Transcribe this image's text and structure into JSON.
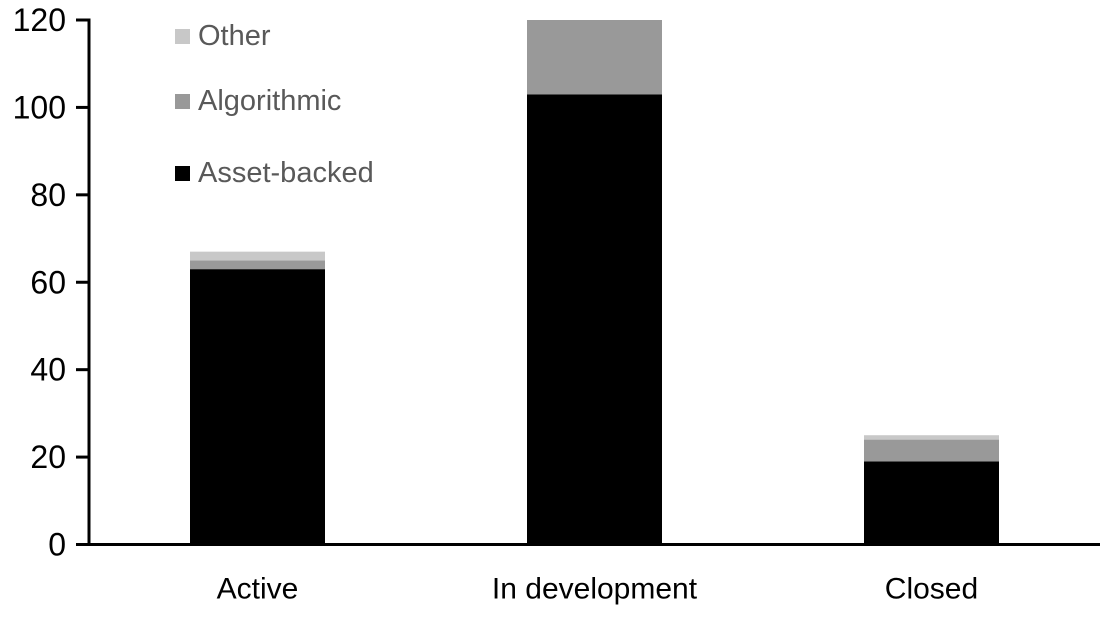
{
  "chart_data": {
    "type": "bar",
    "stacked": true,
    "title": "",
    "xlabel": "",
    "ylabel": "",
    "categories": [
      "Active",
      "In development",
      "Closed"
    ],
    "series": [
      {
        "name": "Asset-backed",
        "color": "#000000",
        "values": [
          63,
          103,
          19
        ]
      },
      {
        "name": "Algorithmic",
        "color": "#999999",
        "values": [
          2,
          17,
          5
        ]
      },
      {
        "name": "Other",
        "color": "#c8c8c8",
        "values": [
          2,
          0,
          1
        ]
      }
    ],
    "stack_totals": [
      67,
      120,
      25
    ],
    "ylim": [
      0,
      120
    ],
    "yticks": [
      0,
      20,
      40,
      60,
      80,
      100,
      120
    ],
    "grid": false,
    "legend_position": "top-left",
    "legend_order_top_to_bottom": [
      "Other",
      "Algorithmic",
      "Asset-backed"
    ],
    "colors": {
      "axis": "#000000",
      "tick_label": "#000000",
      "category_label": "#000000",
      "legend_text": "#595959",
      "background": "#ffffff"
    }
  }
}
